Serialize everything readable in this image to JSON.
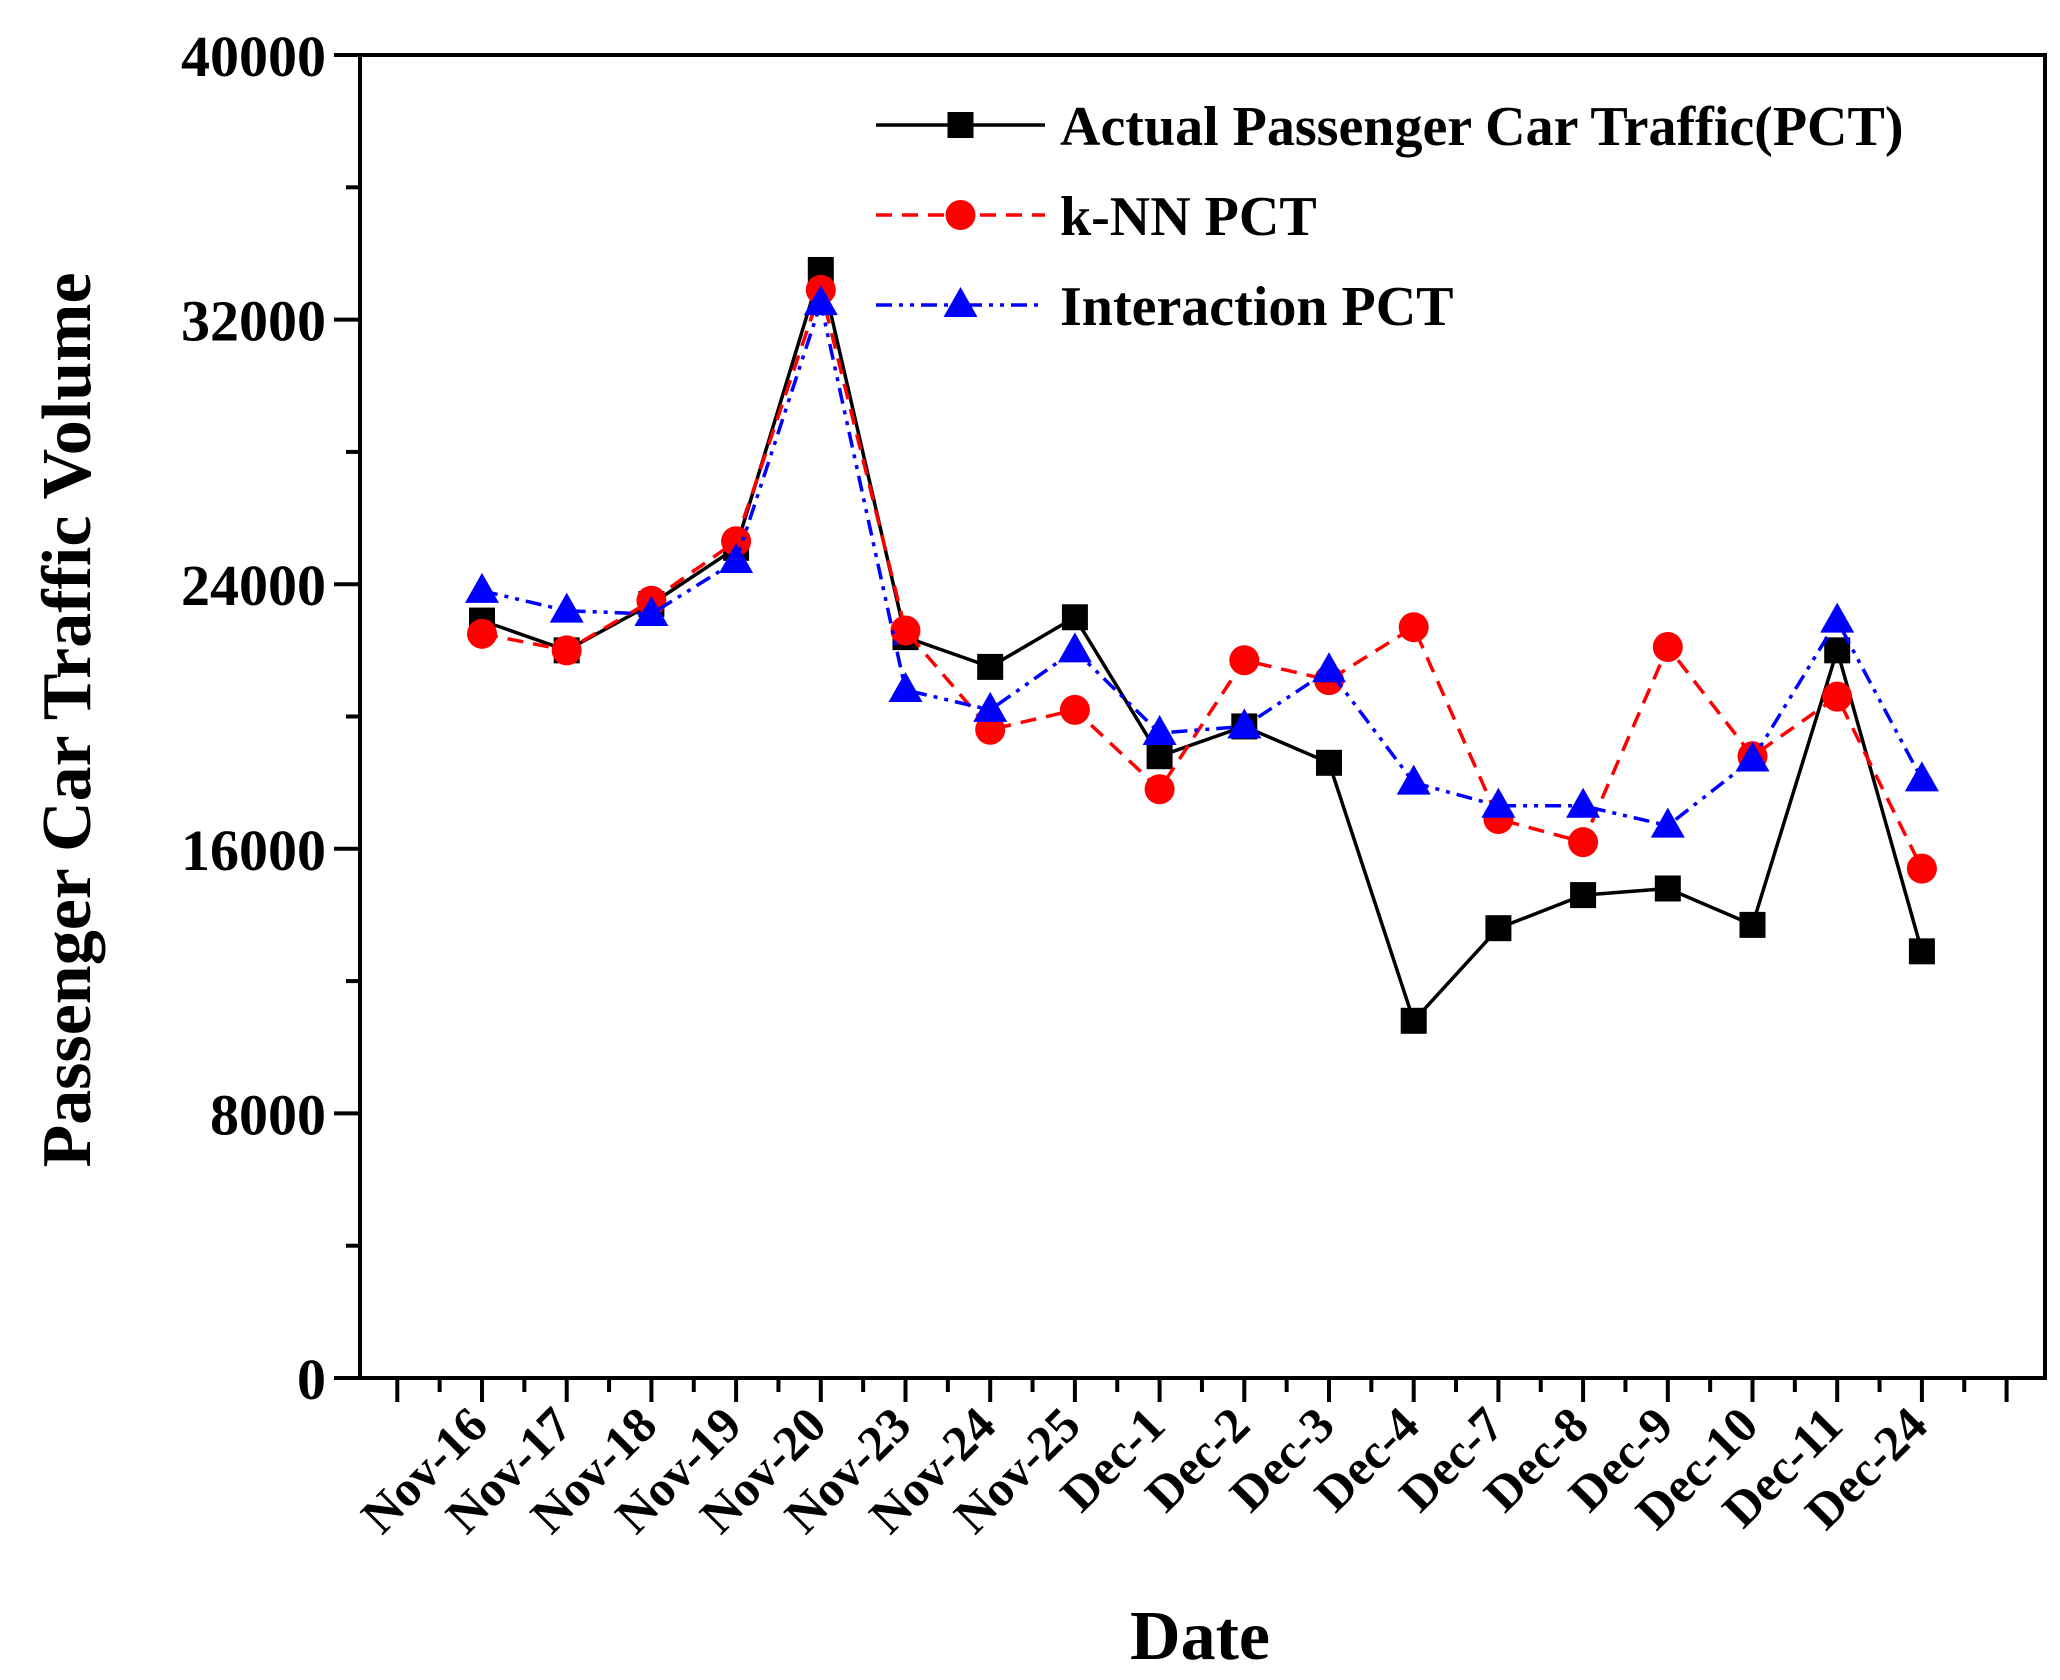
{
  "chart_data": {
    "type": "line",
    "title": "",
    "xlabel": "Date",
    "ylabel": "Passenger Car Traffic Volume",
    "ylim": [
      0,
      40000
    ],
    "yticks": [
      0,
      8000,
      16000,
      24000,
      32000,
      40000
    ],
    "ytick_labels": [
      "0",
      "8000",
      "16000",
      "24000",
      "32000",
      "40000"
    ],
    "categories": [
      "Nov-16",
      "Nov-17",
      "Nov-18",
      "Nov-19",
      "Nov-20",
      "Nov-23",
      "Nov-24",
      "Nov-25",
      "Dec-1",
      "Dec-2",
      "Dec-3",
      "Dec-4",
      "Dec-7",
      "Dec-8",
      "Dec-9",
      "Dec-10",
      "Dec-11",
      "Dec-24"
    ],
    "legend_position": "top-right",
    "grid": false,
    "series": [
      {
        "name": "Actual Passenger Car Traffic(PCT)",
        "color": "#000000",
        "marker": "square",
        "line_style": "solid",
        "values": [
          22900,
          22000,
          23400,
          25100,
          33500,
          22400,
          21500,
          23000,
          18800,
          19700,
          18600,
          10800,
          13600,
          14600,
          14800,
          13700,
          22000,
          12900
        ]
      },
      {
        "name": "k-NN PCT",
        "color": "#ff0000",
        "marker": "circle",
        "line_style": "dashed",
        "values": [
          22500,
          22000,
          23500,
          25300,
          32900,
          22600,
          19600,
          20200,
          17800,
          21700,
          21100,
          22700,
          16900,
          16200,
          22100,
          18800,
          20600,
          15400
        ]
      },
      {
        "name": "Interaction PCT",
        "color": "#0000ff",
        "marker": "triangle",
        "line_style": "dashdotdot",
        "values": [
          23800,
          23200,
          23100,
          24700,
          32500,
          20800,
          20200,
          22000,
          19500,
          19700,
          21400,
          18000,
          17300,
          17300,
          16700,
          18700,
          22900,
          18100
        ]
      }
    ]
  }
}
